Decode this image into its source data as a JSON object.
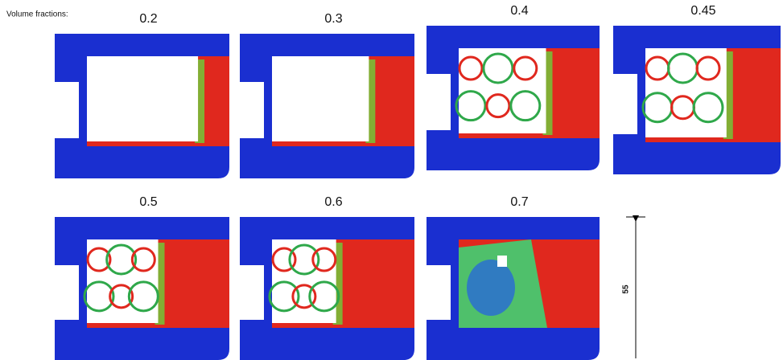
{
  "label": "Volume fractions:",
  "panels": [
    {
      "label": "0.2"
    },
    {
      "label": "0.3"
    },
    {
      "label": "0.4"
    },
    {
      "label": "0.45"
    },
    {
      "label": "0.5"
    },
    {
      "label": "0.6"
    },
    {
      "label": "0.7"
    }
  ],
  "dimension": "55"
}
